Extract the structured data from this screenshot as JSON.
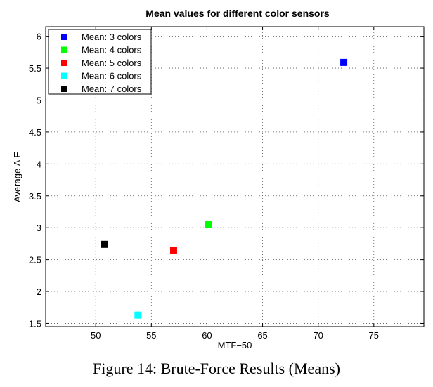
{
  "chart_data": {
    "type": "scatter",
    "title": "Mean values for different color sensors",
    "xlabel": "MTF−50",
    "ylabel": "Average Δ E",
    "xlim": [
      45.5,
      79.5
    ],
    "ylim": [
      1.45,
      6.15
    ],
    "xticks": [
      50,
      55,
      60,
      65,
      70,
      75
    ],
    "yticks": [
      1.5,
      2,
      2.5,
      3,
      3.5,
      4,
      4.5,
      5,
      5.5,
      6
    ],
    "xtick_labels": [
      "50",
      "55",
      "60",
      "65",
      "70",
      "75"
    ],
    "ytick_labels": [
      "1.5",
      "2",
      "2.5",
      "3",
      "3.5",
      "4",
      "4.5",
      "5",
      "5.5",
      "6"
    ],
    "grid": true,
    "legend_position": "top-left",
    "series": [
      {
        "name": "Mean: 3 colors",
        "color": "#0000ff",
        "x": 72.3,
        "y": 5.59
      },
      {
        "name": "Mean: 4 colors",
        "color": "#00ff00",
        "x": 60.1,
        "y": 3.05
      },
      {
        "name": "Mean: 5 colors",
        "color": "#ff0000",
        "x": 57.0,
        "y": 2.65
      },
      {
        "name": "Mean: 6 colors",
        "color": "#00ffff",
        "x": 53.8,
        "y": 1.63
      },
      {
        "name": "Mean: 7 colors",
        "color": "#000000",
        "x": 50.8,
        "y": 2.74
      }
    ]
  },
  "caption": "Figure 14: Brute-Force Results (Means)"
}
